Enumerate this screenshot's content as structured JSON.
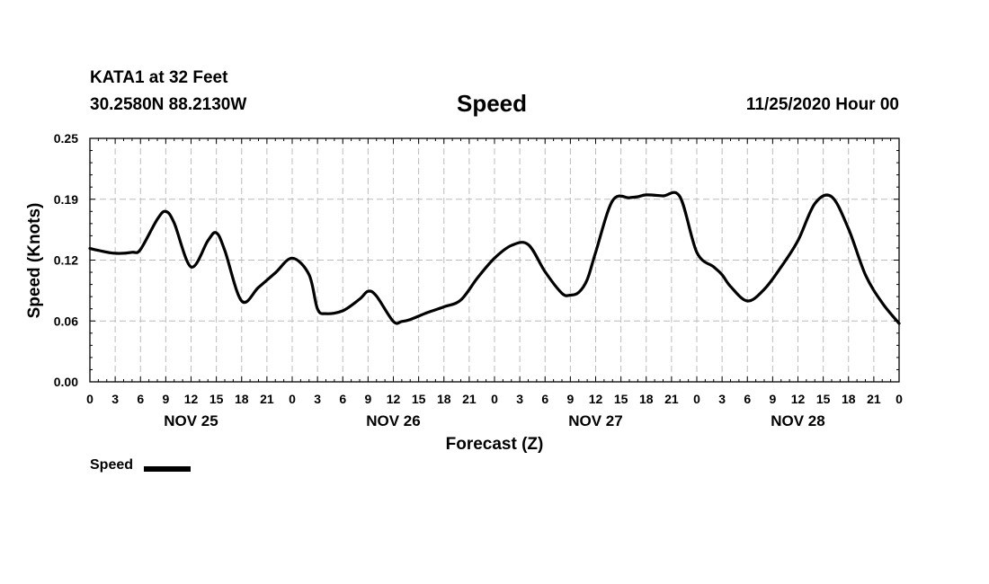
{
  "header": {
    "station": "KATA1 at 32 Feet",
    "coordinates": "30.2580N 88.2130W",
    "forecast_time": "11/25/2020 Hour 00"
  },
  "chart_data": {
    "type": "line",
    "title": "Speed",
    "xlabel": "Forecast (Z)",
    "ylabel": "Speed (Knots)",
    "xlim": [
      0,
      96
    ],
    "ylim": [
      0,
      0.25
    ],
    "y_ticks": [
      "0.00",
      "0.06",
      "0.12",
      "0.19",
      "0.25"
    ],
    "x_tick_labels": [
      "0",
      "3",
      "6",
      "9",
      "12",
      "15",
      "18",
      "21",
      "0",
      "3",
      "6",
      "9",
      "12",
      "15",
      "18",
      "21",
      "0",
      "3",
      "6",
      "9",
      "12",
      "15",
      "18",
      "21",
      "0",
      "3",
      "6",
      "9",
      "12",
      "15",
      "18",
      "21",
      "0"
    ],
    "day_labels": [
      {
        "label": "NOV 25",
        "at_hour": 12
      },
      {
        "label": "NOV 26",
        "at_hour": 36
      },
      {
        "label": "NOV 27",
        "at_hour": 60
      },
      {
        "label": "NOV 28",
        "at_hour": 84
      }
    ],
    "grid": true,
    "legend_position": "bottom-left",
    "series": [
      {
        "name": "Speed",
        "color": "#000000",
        "x": [
          0,
          1,
          3,
          5,
          6,
          8,
          9,
          10,
          12,
          14,
          15,
          16,
          18,
          20,
          22,
          24,
          26,
          27,
          28,
          30,
          32,
          33,
          34,
          36,
          37,
          38,
          40,
          42,
          44,
          46,
          48,
          50,
          52,
          54,
          56,
          57,
          58,
          59,
          60,
          62,
          64,
          65,
          66,
          68,
          70,
          72,
          74,
          75,
          76,
          78,
          80,
          82,
          84,
          86,
          88,
          90,
          92,
          94,
          96
        ],
        "y": [
          0.137,
          0.135,
          0.132,
          0.133,
          0.136,
          0.167,
          0.175,
          0.163,
          0.118,
          0.145,
          0.153,
          0.135,
          0.083,
          0.097,
          0.112,
          0.127,
          0.11,
          0.075,
          0.07,
          0.073,
          0.085,
          0.093,
          0.088,
          0.062,
          0.062,
          0.064,
          0.071,
          0.077,
          0.084,
          0.107,
          0.127,
          0.14,
          0.141,
          0.113,
          0.091,
          0.089,
          0.092,
          0.105,
          0.133,
          0.186,
          0.189,
          0.19,
          0.192,
          0.191,
          0.19,
          0.133,
          0.118,
          0.11,
          0.098,
          0.083,
          0.095,
          0.118,
          0.145,
          0.183,
          0.19,
          0.157,
          0.11,
          0.081,
          0.06
        ]
      }
    ]
  }
}
